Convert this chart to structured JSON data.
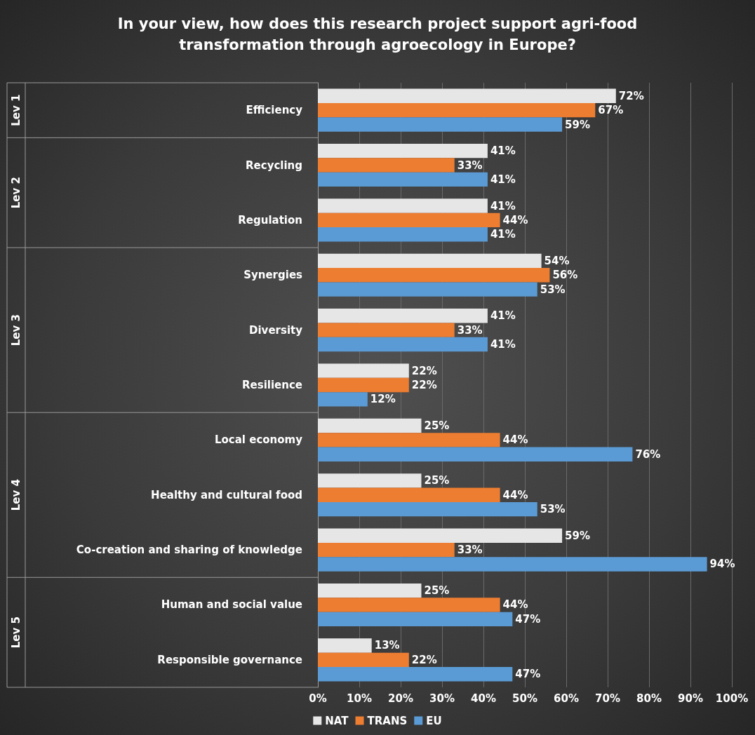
{
  "chart_data": {
    "type": "bar",
    "orientation": "horizontal",
    "title": "In your view, how does this research project support agri-food\ntransformation through agroecology in Europe?",
    "categories": [
      "Efficiency",
      "Recycling",
      "Regulation",
      "Synergies",
      "Diversity",
      "Resilience",
      "Local economy",
      "Healthy and cultural food",
      "Co-creation and sharing of knowledge",
      "Human and social value",
      "Responsible governance"
    ],
    "series": [
      {
        "name": "NAT",
        "color": "#e7e6e6",
        "values": [
          72,
          41,
          41,
          54,
          41,
          22,
          25,
          25,
          59,
          25,
          13
        ],
        "value_labels": [
          "72%",
          "41%",
          "41%",
          "54%",
          "41%",
          "22%",
          "25%",
          "25%",
          "59%",
          "25%",
          "13%"
        ]
      },
      {
        "name": "TRANS",
        "color": "#ed7d31",
        "values": [
          67,
          33,
          44,
          56,
          33,
          22,
          44,
          44,
          33,
          44,
          22
        ],
        "value_labels": [
          "67%",
          "33%",
          "44%",
          "56%",
          "33%",
          "22%",
          "44%",
          "44%",
          "33%",
          "44%",
          "22%"
        ]
      },
      {
        "name": "EU",
        "color": "#5b9bd5",
        "values": [
          59,
          41,
          41,
          53,
          41,
          12,
          76,
          53,
          94,
          47,
          47
        ],
        "value_labels": [
          "59%",
          "41%",
          "41%",
          "53%",
          "41%",
          "12%",
          "76%",
          "53%",
          "94%",
          "47%",
          "47%"
        ]
      }
    ],
    "xlim": [
      0,
      100
    ],
    "xticks": [
      {
        "value": 0,
        "label": "0%"
      },
      {
        "value": 10,
        "label": "10%"
      },
      {
        "value": 20,
        "label": "20%"
      },
      {
        "value": 30,
        "label": "30%"
      },
      {
        "value": 40,
        "label": "40%"
      },
      {
        "value": 50,
        "label": "50%"
      },
      {
        "value": 60,
        "label": "60%"
      },
      {
        "value": 70,
        "label": "70%"
      },
      {
        "value": 80,
        "label": "80%"
      },
      {
        "value": 90,
        "label": "90%"
      },
      {
        "value": 100,
        "label": "100%"
      }
    ],
    "grid": "x",
    "legend": "bottom",
    "annotations": [
      "Lev 1",
      "Lev 2",
      "Lev 3",
      "Lev 4",
      "Lev 5"
    ]
  }
}
